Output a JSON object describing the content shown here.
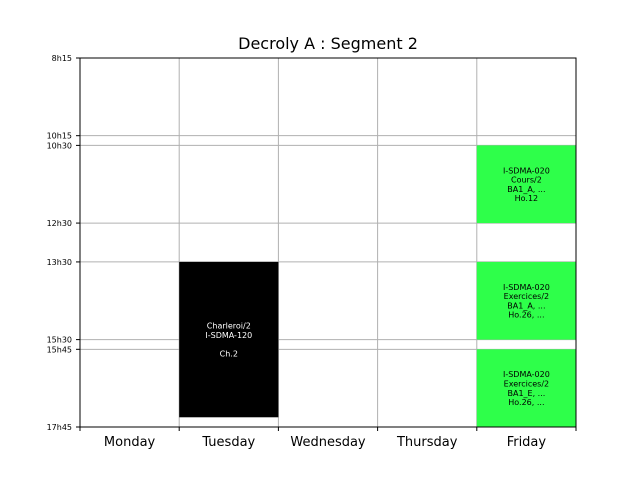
{
  "chart_data": {
    "type": "table",
    "title": "Decroly A : Segment 2",
    "days": [
      "Monday",
      "Tuesday",
      "Wednesday",
      "Thursday",
      "Friday"
    ],
    "time_ticks": [
      {
        "label": "8h15",
        "minutes": 495
      },
      {
        "label": "10h15",
        "minutes": 615
      },
      {
        "label": "10h30",
        "minutes": 630
      },
      {
        "label": "12h30",
        "minutes": 750
      },
      {
        "label": "13h30",
        "minutes": 810
      },
      {
        "label": "15h30",
        "minutes": 930
      },
      {
        "label": "15h45",
        "minutes": 945
      },
      {
        "label": "17h45",
        "minutes": 1065
      }
    ],
    "y_range_minutes": [
      495,
      1065
    ],
    "grid": true,
    "events": [
      {
        "day": "Tuesday",
        "start_minutes": 810,
        "end_minutes": 1050,
        "color": "#000000",
        "text_color": "#ffffff",
        "lines": [
          "Charleroi/2",
          "I-SDMA-120",
          "",
          "Ch.2"
        ]
      },
      {
        "day": "Friday",
        "start_minutes": 630,
        "end_minutes": 750,
        "color": "#2eff4a",
        "text_color": "#000000",
        "lines": [
          "I-SDMA-020",
          "Cours/2",
          "BA1_A, ...",
          "Ho.12"
        ]
      },
      {
        "day": "Friday",
        "start_minutes": 810,
        "end_minutes": 930,
        "color": "#2eff4a",
        "text_color": "#000000",
        "lines": [
          "I-SDMA-020",
          "Exercices/2",
          "BA1_A, ...",
          "Ho.26, ..."
        ]
      },
      {
        "day": "Friday",
        "start_minutes": 945,
        "end_minutes": 1065,
        "color": "#2eff4a",
        "text_color": "#000000",
        "lines": [
          "I-SDMA-020",
          "Exercices/2",
          "BA1_E, ...",
          "Ho.26, ..."
        ]
      }
    ]
  }
}
